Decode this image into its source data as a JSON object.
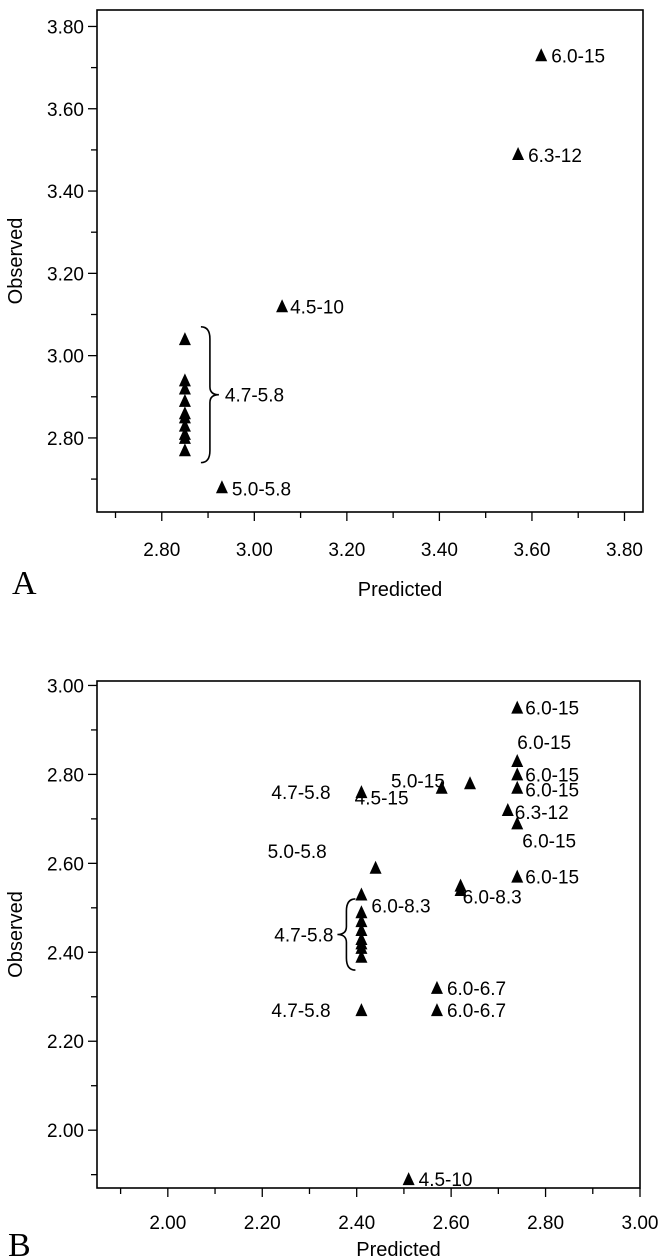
{
  "chart_data": [
    {
      "panel": "A",
      "type": "scatter",
      "xlabel": "Predicted",
      "ylabel": "Observed",
      "xlim": [
        2.66,
        3.84
      ],
      "ylim": [
        2.62,
        3.84
      ],
      "xticks": [
        "2.80",
        "3.00",
        "3.20",
        "3.40",
        "3.60",
        "3.80"
      ],
      "yticks": [
        "2.80",
        "3.00",
        "3.20",
        "3.40",
        "3.60",
        "3.80"
      ],
      "marker": "triangle",
      "points": [
        {
          "x": 3.62,
          "y": 3.73,
          "label": "6.0-15"
        },
        {
          "x": 3.57,
          "y": 3.49,
          "label": "6.3-12"
        },
        {
          "x": 3.06,
          "y": 3.12,
          "label": "4.5-10"
        },
        {
          "x": 2.93,
          "y": 2.68,
          "label": "5.0-5.8"
        },
        {
          "x": 2.85,
          "y": 3.04,
          "label": ""
        },
        {
          "x": 2.85,
          "y": 2.94,
          "label": ""
        },
        {
          "x": 2.85,
          "y": 2.92,
          "label": ""
        },
        {
          "x": 2.85,
          "y": 2.89,
          "label": ""
        },
        {
          "x": 2.85,
          "y": 2.86,
          "label": ""
        },
        {
          "x": 2.85,
          "y": 2.85,
          "label": ""
        },
        {
          "x": 2.85,
          "y": 2.83,
          "label": ""
        },
        {
          "x": 2.85,
          "y": 2.81,
          "label": ""
        },
        {
          "x": 2.85,
          "y": 2.8,
          "label": ""
        },
        {
          "x": 2.85,
          "y": 2.77,
          "label": ""
        }
      ],
      "group_annotations": [
        {
          "label": "4.7-5.8",
          "x": 2.85,
          "y_from": 2.74,
          "y_to": 3.07
        }
      ]
    },
    {
      "panel": "B",
      "type": "scatter",
      "xlabel": "Predicted",
      "ylabel": "Observed",
      "xlim": [
        1.85,
        3.0
      ],
      "ylim": [
        1.87,
        3.01
      ],
      "xticks": [
        "2.00",
        "2.20",
        "2.40",
        "2.60",
        "2.80",
        "3.00"
      ],
      "yticks": [
        "2.00",
        "2.20",
        "2.40",
        "2.60",
        "2.80",
        "3.00"
      ],
      "marker": "triangle",
      "points": [
        {
          "x": 2.74,
          "y": 2.95,
          "label": "6.0-15"
        },
        {
          "x": 2.74,
          "y": 2.83,
          "label": "6.0-15"
        },
        {
          "x": 2.74,
          "y": 2.8,
          "label": "6.0-15"
        },
        {
          "x": 2.74,
          "y": 2.77,
          "label": "6.0-15"
        },
        {
          "x": 2.64,
          "y": 2.78,
          "label": "5.0-15"
        },
        {
          "x": 2.58,
          "y": 2.77,
          "label": "4.5-15"
        },
        {
          "x": 2.41,
          "y": 2.76,
          "label": "4.7-5.8"
        },
        {
          "x": 2.72,
          "y": 2.72,
          "label": "6.3-12"
        },
        {
          "x": 2.74,
          "y": 2.69,
          "label": "6.0-15"
        },
        {
          "x": 2.74,
          "y": 2.57,
          "label": "6.0-15"
        },
        {
          "x": 2.44,
          "y": 2.59,
          "label": "5.0-5.8"
        },
        {
          "x": 2.41,
          "y": 2.53,
          "label": "6.0-8.3"
        },
        {
          "x": 2.62,
          "y": 2.55,
          "label": "6.0-8.3"
        },
        {
          "x": 2.62,
          "y": 2.54,
          "label": ""
        },
        {
          "x": 2.57,
          "y": 2.32,
          "label": "6.0-6.7"
        },
        {
          "x": 2.57,
          "y": 2.27,
          "label": "6.0-6.7"
        },
        {
          "x": 2.41,
          "y": 2.27,
          "label": "4.7-5.8"
        },
        {
          "x": 2.51,
          "y": 1.89,
          "label": "4.5-10"
        },
        {
          "x": 2.41,
          "y": 2.49,
          "label": ""
        },
        {
          "x": 2.41,
          "y": 2.47,
          "label": ""
        },
        {
          "x": 2.41,
          "y": 2.45,
          "label": ""
        },
        {
          "x": 2.41,
          "y": 2.43,
          "label": ""
        },
        {
          "x": 2.41,
          "y": 2.42,
          "label": ""
        },
        {
          "x": 2.41,
          "y": 2.41,
          "label": ""
        },
        {
          "x": 2.41,
          "y": 2.39,
          "label": ""
        }
      ],
      "group_annotations": [
        {
          "label": "4.7-5.8",
          "x": 2.41,
          "y_from": 2.36,
          "y_to": 2.52
        }
      ]
    }
  ]
}
